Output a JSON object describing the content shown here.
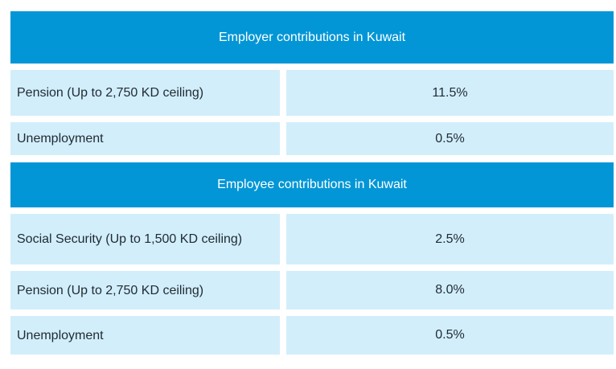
{
  "employer": {
    "title": "Employer contributions in Kuwait",
    "rows": [
      {
        "label": "Pension (Up to 2,750 KD ceiling)",
        "value": "11.5%"
      },
      {
        "label": "Unemployment",
        "value": "0.5%"
      }
    ]
  },
  "employee": {
    "title": "Employee contributions in Kuwait",
    "rows": [
      {
        "label": "Social Security (Up to 1,500 KD ceiling)",
        "value": "2.5%"
      },
      {
        "label": "Pension (Up to 2,750 KD ceiling)",
        "value": "8.0%"
      },
      {
        "label": "Unemployment",
        "value": "0.5%"
      }
    ]
  }
}
